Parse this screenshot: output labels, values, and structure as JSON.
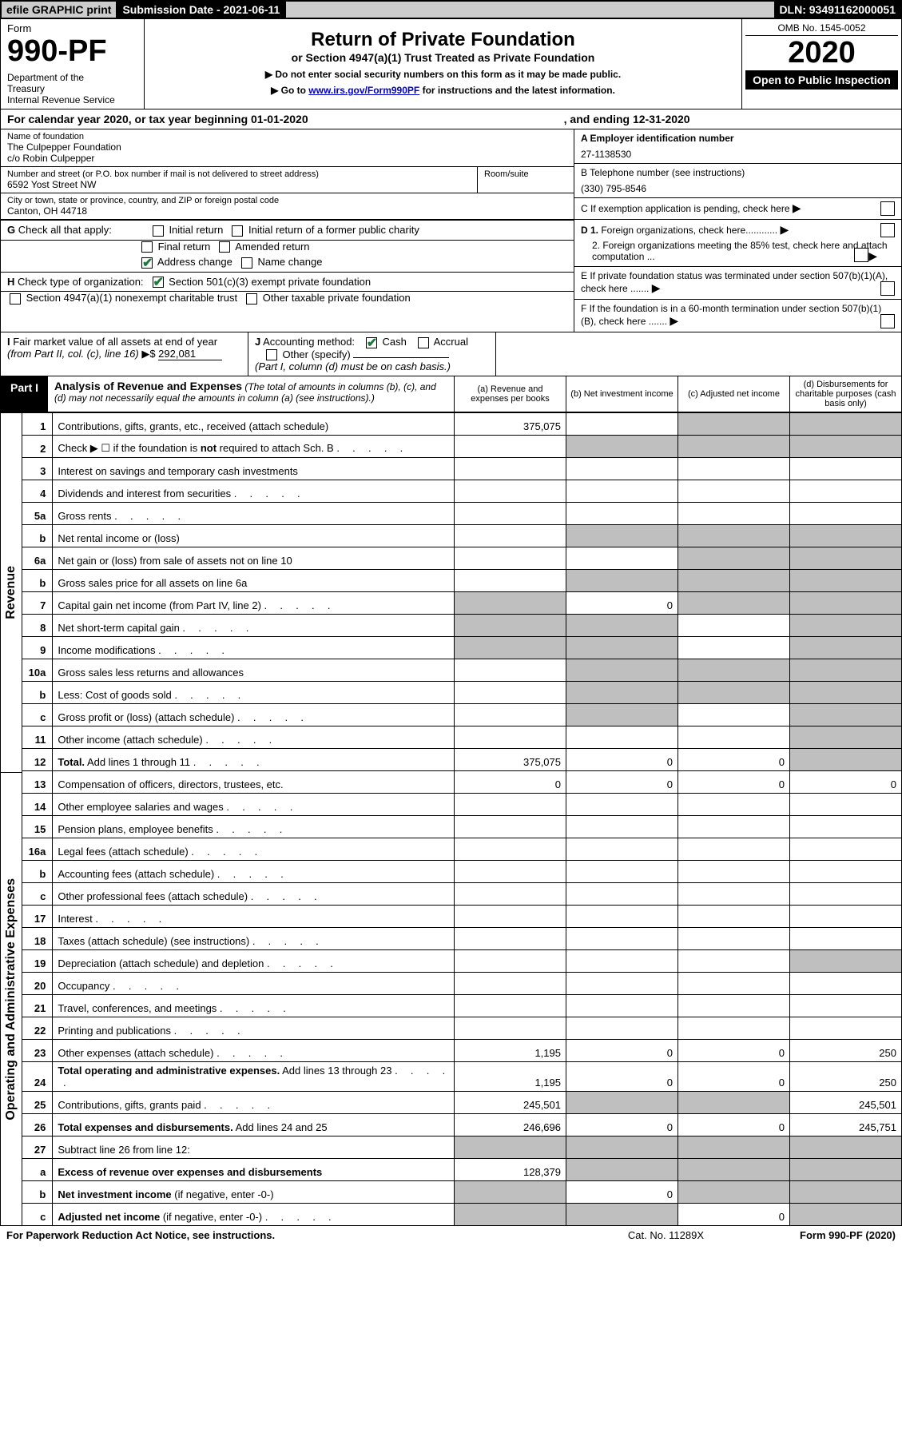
{
  "topbar": {
    "efile": "efile GRAPHIC print",
    "sub_label": "Submission Date - 2021-06-11",
    "dln": "DLN: 93491162000051"
  },
  "header": {
    "form_word": "Form",
    "form_num": "990-PF",
    "dept": "Department of the Treasury\nInternal Revenue Service",
    "title": "Return of Private Foundation",
    "subtitle": "or Section 4947(a)(1) Trust Treated as Private Foundation",
    "note1": "▶ Do not enter social security numbers on this form as it may be made public.",
    "note2_pre": "▶ Go to ",
    "note2_link": "www.irs.gov/Form990PF",
    "note2_post": " for instructions and the latest information.",
    "omb": "OMB No. 1545-0052",
    "year": "2020",
    "open": "Open to Public Inspection"
  },
  "cal": {
    "text": "For calendar year 2020, or tax year beginning 01-01-2020",
    "ending": ", and ending 12-31-2020"
  },
  "ident": {
    "name_lbl": "Name of foundation",
    "name1": "The Culpepper Foundation",
    "name2": "c/o Robin Culpepper",
    "addr_lbl": "Number and street (or P.O. box number if mail is not delivered to street address)",
    "addr": "6592 Yost Street NW",
    "room_lbl": "Room/suite",
    "city_lbl": "City or town, state or province, country, and ZIP or foreign postal code",
    "city": "Canton, OH  44718",
    "a_lbl": "A Employer identification number",
    "a_val": "27-1138530",
    "b_lbl": "B Telephone number (see instructions)",
    "b_val": "(330) 795-8546",
    "c_lbl": "C If exemption application is pending, check here",
    "d1": "D 1. Foreign organizations, check here............",
    "d2": "2. Foreign organizations meeting the 85% test, check here and attach computation ...",
    "e": "E  If private foundation status was terminated under section 507(b)(1)(A), check here .......",
    "f": "F  If the foundation is in a 60-month termination under section 507(b)(1)(B), check here .......",
    "g_lbl": "G Check all that apply:",
    "g_opts": [
      "Initial return",
      "Initial return of a former public charity",
      "Final return",
      "Amended return",
      "Address change",
      "Name change"
    ],
    "h_lbl": "H Check type of organization:",
    "h1": "Section 501(c)(3) exempt private foundation",
    "h2": "Section 4947(a)(1) nonexempt charitable trust",
    "h3": "Other taxable private foundation",
    "i_lbl": "I Fair market value of all assets at end of year (from Part II, col. (c), line 16)",
    "i_val": "292,081",
    "j_lbl": "J Accounting method:",
    "j_cash": "Cash",
    "j_accrual": "Accrual",
    "j_other": "Other (specify)",
    "j_note": "(Part I, column (d) must be on cash basis.)"
  },
  "part1": {
    "label": "Part I",
    "title": "Analysis of Revenue and Expenses",
    "note": " (The total of amounts in columns (b), (c), and (d) may not necessarily equal the amounts in column (a) (see instructions).)",
    "col_a": "(a)  Revenue and expenses per books",
    "col_b": "(b)  Net investment income",
    "col_c": "(c)  Adjusted net income",
    "col_d": "(d)  Disbursements for charitable purposes (cash basis only)"
  },
  "side": {
    "rev": "Revenue",
    "exp": "Operating and Administrative Expenses"
  },
  "rows": [
    {
      "n": "1",
      "d": "Contributions, gifts, grants, etc., received (attach schedule)",
      "a": "375,075",
      "bg": "",
      "cg": "g",
      "dg": "g"
    },
    {
      "n": "2",
      "d": "Check ▶ ☐ if the foundation is <b>not</b> required to attach Sch. B",
      "dots": 1,
      "bg": "g",
      "cg": "g",
      "dg": "g"
    },
    {
      "n": "3",
      "d": "Interest on savings and temporary cash investments"
    },
    {
      "n": "4",
      "d": "Dividends and interest from securities",
      "dots": 1
    },
    {
      "n": "5a",
      "d": "Gross rents",
      "dots": 1
    },
    {
      "n": "b",
      "d": "Net rental income or (loss)",
      "bg": "g",
      "cg": "g",
      "dg": "g"
    },
    {
      "n": "6a",
      "d": "Net gain or (loss) from sale of assets not on line 10",
      "cg": "g",
      "dg": "g"
    },
    {
      "n": "b",
      "d": "Gross sales price for all assets on line 6a",
      "bg": "g",
      "cg": "g",
      "dg": "g"
    },
    {
      "n": "7",
      "d": "Capital gain net income (from Part IV, line 2)",
      "dots": 1,
      "ag": "g",
      "b": "0",
      "cg": "g",
      "dg": "g"
    },
    {
      "n": "8",
      "d": "Net short-term capital gain",
      "dots": 1,
      "ag": "g",
      "bg": "g",
      "dg": "g"
    },
    {
      "n": "9",
      "d": "Income modifications",
      "dots": 1,
      "ag": "g",
      "bg": "g",
      "dg": "g"
    },
    {
      "n": "10a",
      "d": "Gross sales less returns and allowances",
      "bg": "g",
      "cg": "g",
      "dg": "g"
    },
    {
      "n": "b",
      "d": "Less: Cost of goods sold",
      "dots": 1,
      "bg": "g",
      "cg": "g",
      "dg": "g"
    },
    {
      "n": "c",
      "d": "Gross profit or (loss) (attach schedule)",
      "dots": 1,
      "bg": "g",
      "dg": "g"
    },
    {
      "n": "11",
      "d": "Other income (attach schedule)",
      "dots": 1,
      "dg": "g"
    },
    {
      "n": "12",
      "d": "<b>Total.</b> Add lines 1 through 11",
      "dots": 1,
      "a": "375,075",
      "b": "0",
      "c": "0",
      "dg": "g"
    },
    {
      "n": "13",
      "d": "Compensation of officers, directors, trustees, etc.",
      "a": "0",
      "b": "0",
      "c": "0",
      "dval": "0"
    },
    {
      "n": "14",
      "d": "Other employee salaries and wages",
      "dots": 1
    },
    {
      "n": "15",
      "d": "Pension plans, employee benefits",
      "dots": 1
    },
    {
      "n": "16a",
      "d": "Legal fees (attach schedule)",
      "dots": 1
    },
    {
      "n": "b",
      "d": "Accounting fees (attach schedule)",
      "dots": 1
    },
    {
      "n": "c",
      "d": "Other professional fees (attach schedule)",
      "dots": 1
    },
    {
      "n": "17",
      "d": "Interest",
      "dots": 1
    },
    {
      "n": "18",
      "d": "Taxes (attach schedule) (see instructions)",
      "dots": 1
    },
    {
      "n": "19",
      "d": "Depreciation (attach schedule) and depletion",
      "dots": 1,
      "dg": "g"
    },
    {
      "n": "20",
      "d": "Occupancy",
      "dots": 1
    },
    {
      "n": "21",
      "d": "Travel, conferences, and meetings",
      "dots": 1
    },
    {
      "n": "22",
      "d": "Printing and publications",
      "dots": 1
    },
    {
      "n": "23",
      "d": "Other expenses (attach schedule)",
      "dots": 1,
      "a": "1,195",
      "b": "0",
      "c": "0",
      "dval": "250"
    },
    {
      "n": "24",
      "d": "<b>Total operating and administrative expenses.</b> Add lines 13 through 23",
      "dots": 1,
      "a": "1,195",
      "b": "0",
      "c": "0",
      "dval": "250"
    },
    {
      "n": "25",
      "d": "Contributions, gifts, grants paid",
      "dots": 1,
      "a": "245,501",
      "bg": "g",
      "cg": "g",
      "dval": "245,501"
    },
    {
      "n": "26",
      "d": "<b>Total expenses and disbursements.</b> Add lines 24 and 25",
      "a": "246,696",
      "b": "0",
      "c": "0",
      "dval": "245,751"
    },
    {
      "n": "27",
      "d": "Subtract line 26 from line 12:",
      "ag": "g",
      "bg": "g",
      "cg": "g",
      "dg": "g"
    },
    {
      "n": "a",
      "d": "<b>Excess of revenue over expenses and disbursements</b>",
      "a": "128,379",
      "bg": "g",
      "cg": "g",
      "dg": "g"
    },
    {
      "n": "b",
      "d": "<b>Net investment income</b> (if negative, enter -0-)",
      "ag": "g",
      "b": "0",
      "cg": "g",
      "dg": "g"
    },
    {
      "n": "c",
      "d": "<b>Adjusted net income</b> (if negative, enter -0-)",
      "dots": 1,
      "ag": "g",
      "bg": "g",
      "c": "0",
      "dg": "g"
    }
  ],
  "footer": {
    "left": "For Paperwork Reduction Act Notice, see instructions.",
    "cat": "Cat. No. 11289X",
    "right": "Form 990-PF (2020)"
  }
}
